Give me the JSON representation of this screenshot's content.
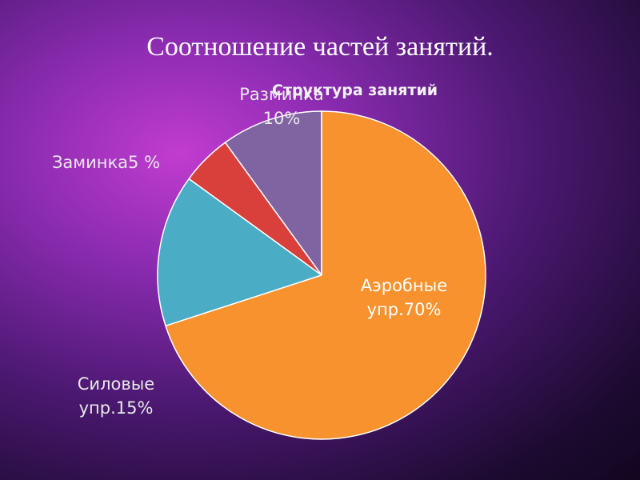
{
  "slide_title": "Соотношение частей занятий.",
  "chart_data": {
    "type": "pie",
    "title": "Структура занятий",
    "categories": [
      "Аэробные упр.",
      "Силовые упр.",
      "Заминка",
      "Разминка"
    ],
    "values": [
      70,
      15,
      5,
      10
    ],
    "value_labels": [
      "Аэробные упр.70%",
      "Силовые упр.15%",
      "Заминка5 %",
      "Разминка 10%"
    ],
    "colors": [
      "#f7922e",
      "#4bacc6",
      "#d9403b",
      "#8064a2"
    ]
  }
}
